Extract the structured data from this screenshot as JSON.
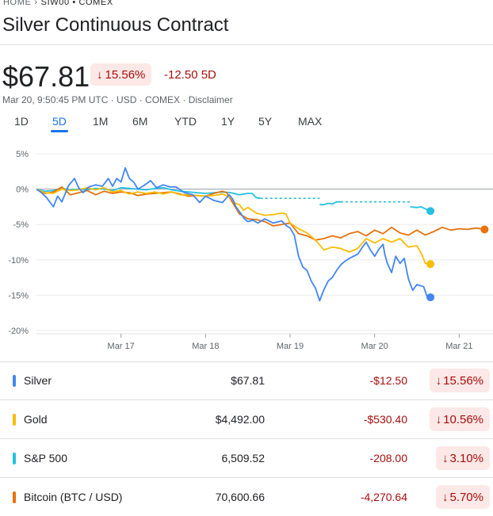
{
  "breadcrumb": {
    "home": "HOME",
    "separator": "›",
    "symbol": "SIW00 • COMEX"
  },
  "title": "Silver Continuous Contract",
  "price": "$67.81",
  "change_pct": "15.56%",
  "change_arrow": "↓",
  "change_abs": "-12.50 5D",
  "meta": "Mar 20, 9:50:45 PM UTC · USD · COMEX · Disclaimer",
  "tabs": [
    "1D",
    "5D",
    "1M",
    "6M",
    "YTD",
    "1Y",
    "5Y",
    "MAX"
  ],
  "active_tab": "5D",
  "colors": {
    "silver": "#4285f4",
    "gold": "#fbbc04",
    "sp500": "#24c1e0",
    "bitcoin": "#e8710a",
    "negative": "#a50e0e",
    "negative_bg": "#fce8e6",
    "accent": "#1a73e8"
  },
  "chart_data": {
    "type": "line",
    "title": "",
    "xlabel": "",
    "ylabel": "",
    "y_tick_labels": [
      "5%",
      "0%",
      "-5%",
      "-10%",
      "-15%",
      "-20%"
    ],
    "x_tick_labels": [
      "Mar 17",
      "Mar 18",
      "Mar 19",
      "Mar 20",
      "Mar 21"
    ],
    "x_range": [
      16.0,
      21.4
    ],
    "ylim": [
      -20,
      5
    ],
    "series": [
      {
        "name": "Silver",
        "color": "#4285f4",
        "points": [
          [
            16.0,
            0
          ],
          [
            16.05,
            -0.4
          ],
          [
            16.12,
            -1.2
          ],
          [
            16.2,
            -2.5
          ],
          [
            16.25,
            -1
          ],
          [
            16.3,
            -1.8
          ],
          [
            16.38,
            0.5
          ],
          [
            16.45,
            1.5
          ],
          [
            16.5,
            0.2
          ],
          [
            16.55,
            -0.5
          ],
          [
            16.62,
            0.3
          ],
          [
            16.7,
            0.6
          ],
          [
            16.78,
            0.4
          ],
          [
            16.85,
            1.5
          ],
          [
            16.9,
            0.4
          ],
          [
            16.95,
            1.5
          ],
          [
            17.0,
            1
          ],
          [
            17.05,
            3
          ],
          [
            17.1,
            1.5
          ],
          [
            17.15,
            1
          ],
          [
            17.2,
            0
          ],
          [
            17.27,
            0.5
          ],
          [
            17.35,
            1.2
          ],
          [
            17.42,
            0.2
          ],
          [
            17.5,
            0.6
          ],
          [
            17.58,
            0.3
          ],
          [
            17.65,
            0.3
          ],
          [
            17.75,
            -0.5
          ],
          [
            17.85,
            -0.8
          ],
          [
            17.93,
            -1.9
          ],
          [
            18.0,
            -1.0
          ],
          [
            18.1,
            -1.6
          ],
          [
            18.2,
            -1.9
          ],
          [
            18.28,
            -0.8
          ],
          [
            18.32,
            -1.4
          ],
          [
            18.36,
            -2.5
          ],
          [
            18.42,
            -3.5
          ],
          [
            18.46,
            -4.2
          ],
          [
            18.5,
            -4.6
          ],
          [
            18.56,
            -4.4
          ],
          [
            18.62,
            -4.8
          ],
          [
            18.7,
            -4.2
          ],
          [
            18.8,
            -4.8
          ],
          [
            18.9,
            -4.5
          ],
          [
            18.96,
            -5.2
          ],
          [
            19.0,
            -5.5
          ],
          [
            19.05,
            -6.5
          ],
          [
            19.1,
            -9.5
          ],
          [
            19.15,
            -11
          ],
          [
            19.2,
            -11.5
          ],
          [
            19.25,
            -13
          ],
          [
            19.3,
            -14
          ],
          [
            19.35,
            -15.8
          ],
          [
            19.4,
            -14.2
          ],
          [
            19.45,
            -13
          ],
          [
            19.5,
            -12.5
          ],
          [
            19.55,
            -11.5
          ],
          [
            19.6,
            -10.7
          ],
          [
            19.65,
            -10.2
          ],
          [
            19.7,
            -9.8
          ],
          [
            19.75,
            -9.5
          ],
          [
            19.8,
            -9.2
          ],
          [
            19.85,
            -8.3
          ],
          [
            19.9,
            -7.5
          ],
          [
            19.95,
            -8.6
          ],
          [
            20.0,
            -9.5
          ],
          [
            20.05,
            -8.5
          ],
          [
            20.1,
            -7.8
          ],
          [
            20.12,
            -9.2
          ],
          [
            20.15,
            -10.5
          ],
          [
            20.2,
            -11.8
          ],
          [
            20.25,
            -9.5
          ],
          [
            20.3,
            -10.5
          ],
          [
            20.35,
            -9.8
          ],
          [
            20.4,
            -12.7
          ],
          [
            20.45,
            -14.3
          ],
          [
            20.5,
            -13.5
          ],
          [
            20.58,
            -13.8
          ],
          [
            20.62,
            -15.2
          ],
          [
            20.66,
            -15.3
          ]
        ],
        "end_value": -15.56
      },
      {
        "name": "Gold",
        "color": "#fbbc04",
        "points": [
          [
            16.0,
            0
          ],
          [
            16.1,
            -0.5
          ],
          [
            16.2,
            -0.6
          ],
          [
            16.3,
            0
          ],
          [
            16.4,
            -0.2
          ],
          [
            16.5,
            -0.1
          ],
          [
            16.6,
            0.2
          ],
          [
            16.7,
            -0.1
          ],
          [
            16.8,
            0.2
          ],
          [
            16.9,
            -0.4
          ],
          [
            17.0,
            -0.2
          ],
          [
            17.1,
            -0.7
          ],
          [
            17.2,
            -0.4
          ],
          [
            17.3,
            -0.6
          ],
          [
            17.4,
            -0.4
          ],
          [
            17.5,
            -0.7
          ],
          [
            17.6,
            -0.4
          ],
          [
            17.7,
            -0.8
          ],
          [
            17.8,
            -0.8
          ],
          [
            17.9,
            -0.9
          ],
          [
            18.0,
            -1.0
          ],
          [
            18.1,
            -0.9
          ],
          [
            18.2,
            -0.7
          ],
          [
            18.3,
            -1.2
          ],
          [
            18.35,
            -2.0
          ],
          [
            18.4,
            -2.2
          ],
          [
            18.45,
            -3.0
          ],
          [
            18.5,
            -2.6
          ],
          [
            18.6,
            -3.4
          ],
          [
            18.7,
            -3.7
          ],
          [
            18.8,
            -3.6
          ],
          [
            18.9,
            -3.4
          ],
          [
            18.95,
            -3.5
          ],
          [
            19.0,
            -4.8
          ],
          [
            19.1,
            -5.6
          ],
          [
            19.2,
            -6.2
          ],
          [
            19.3,
            -7.2
          ],
          [
            19.4,
            -8.6
          ],
          [
            19.5,
            -8.2
          ],
          [
            19.6,
            -8.4
          ],
          [
            19.7,
            -8.9
          ],
          [
            19.8,
            -8.4
          ],
          [
            19.9,
            -7.0
          ],
          [
            20.0,
            -7.6
          ],
          [
            20.1,
            -7.0
          ],
          [
            20.2,
            -7.5
          ],
          [
            20.3,
            -7.0
          ],
          [
            20.4,
            -8.2
          ],
          [
            20.5,
            -8.0
          ],
          [
            20.56,
            -9.3
          ],
          [
            20.6,
            -10.5
          ],
          [
            20.66,
            -10.6
          ]
        ],
        "end_value": -10.56
      },
      {
        "name": "S&P 500",
        "color": "#24c1e0",
        "points": [
          [
            16.0,
            0
          ],
          [
            16.1,
            -0.3
          ],
          [
            16.2,
            -0.2
          ],
          [
            16.3,
            0.1
          ],
          [
            16.4,
            -0.1
          ],
          [
            16.5,
            0
          ],
          [
            16.6,
            -0.1
          ],
          [
            16.7,
            0.1
          ],
          [
            16.8,
            0
          ],
          [
            16.9,
            -0.2
          ],
          [
            17.0,
            0.2
          ],
          [
            17.1,
            0.1
          ],
          [
            17.2,
            0
          ],
          [
            17.3,
            -0.1
          ],
          [
            17.4,
            0.1
          ],
          [
            17.5,
            0.2
          ],
          [
            17.6,
            -0.1
          ],
          [
            17.7,
            -0.3
          ],
          [
            17.8,
            -0.4
          ],
          [
            17.9,
            -0.5
          ],
          [
            18.0,
            -0.6
          ],
          [
            18.1,
            -0.5
          ],
          [
            18.2,
            -0.4
          ],
          [
            18.3,
            -0.5
          ],
          [
            18.4,
            -0.8
          ],
          [
            18.5,
            -0.6
          ],
          [
            18.55,
            -0.6
          ],
          [
            18.6,
            -1.2
          ],
          [
            18.65,
            -1.3
          ]
        ],
        "gaps": [
          [
            [
              18.65,
              -1.3
            ],
            [
              19.35,
              -1.3
            ]
          ],
          [
            [
              19.6,
              -1.8
            ],
            [
              20.42,
              -1.8
            ]
          ]
        ],
        "segments": [
          [
            [
              19.35,
              -2.2
            ],
            [
              19.4,
              -2.2
            ],
            [
              19.45,
              -2.0
            ],
            [
              19.5,
              -2.1
            ],
            [
              19.55,
              -1.8
            ],
            [
              19.6,
              -1.8
            ]
          ],
          [
            [
              20.42,
              -2.5
            ],
            [
              20.5,
              -2.6
            ],
            [
              20.55,
              -2.5
            ],
            [
              20.6,
              -2.8
            ],
            [
              20.66,
              -3.1
            ]
          ]
        ],
        "end_value": -3.1
      },
      {
        "name": "Bitcoin (BTC / USD)",
        "color": "#e8710a",
        "points": [
          [
            16.0,
            0
          ],
          [
            16.1,
            -0.6
          ],
          [
            16.2,
            -0.4
          ],
          [
            16.3,
            0.3
          ],
          [
            16.4,
            -0.8
          ],
          [
            16.5,
            -0.5
          ],
          [
            16.6,
            -0.2
          ],
          [
            16.7,
            -0.8
          ],
          [
            16.8,
            -0.3
          ],
          [
            16.9,
            -0.6
          ],
          [
            17.0,
            -0.4
          ],
          [
            17.1,
            -0.5
          ],
          [
            17.2,
            -0.9
          ],
          [
            17.3,
            -0.7
          ],
          [
            17.4,
            -0.6
          ],
          [
            17.5,
            -0.5
          ],
          [
            17.6,
            -0.4
          ],
          [
            17.7,
            -0.7
          ],
          [
            17.8,
            -1.0
          ],
          [
            17.9,
            -0.9
          ],
          [
            18.0,
            -1.0
          ],
          [
            18.1,
            -0.6
          ],
          [
            18.2,
            -0.3
          ],
          [
            18.25,
            -0.5
          ],
          [
            18.3,
            -1.5
          ],
          [
            18.4,
            -3.5
          ],
          [
            18.5,
            -4.2
          ],
          [
            18.6,
            -4.3
          ],
          [
            18.7,
            -4.6
          ],
          [
            18.8,
            -5.2
          ],
          [
            18.9,
            -5.0
          ],
          [
            19.0,
            -4.8
          ],
          [
            19.1,
            -6.3
          ],
          [
            19.2,
            -6.6
          ],
          [
            19.3,
            -7.2
          ],
          [
            19.4,
            -7.0
          ],
          [
            19.5,
            -6.6
          ],
          [
            19.6,
            -6.9
          ],
          [
            19.7,
            -6.3
          ],
          [
            19.8,
            -6.0
          ],
          [
            19.9,
            -6.6
          ],
          [
            20.0,
            -5.8
          ],
          [
            20.1,
            -6.3
          ],
          [
            20.2,
            -5.4
          ],
          [
            20.3,
            -6.2
          ],
          [
            20.4,
            -6.5
          ],
          [
            20.5,
            -5.8
          ],
          [
            20.6,
            -6.5
          ],
          [
            20.7,
            -6.0
          ],
          [
            20.8,
            -5.4
          ],
          [
            20.9,
            -5.8
          ],
          [
            21.0,
            -5.6
          ],
          [
            21.1,
            -5.7
          ],
          [
            21.2,
            -5.5
          ],
          [
            21.3,
            -5.7
          ]
        ],
        "end_value": -5.7
      }
    ]
  },
  "legend": [
    {
      "name": "Silver",
      "value": "$67.81",
      "change": "-$12.50",
      "pct": "15.56%",
      "arrow": "↓"
    },
    {
      "name": "Gold",
      "value": "$4,492.00",
      "change": "-$530.40",
      "pct": "10.56%",
      "arrow": "↓"
    },
    {
      "name": "S&P 500",
      "value": "6,509.52",
      "change": "-208.00",
      "pct": "3.10%",
      "arrow": "↓"
    },
    {
      "name": "Bitcoin (BTC / USD)",
      "value": "70,600.66",
      "change": "-4,270.64",
      "pct": "5.70%",
      "arrow": "↓"
    }
  ]
}
